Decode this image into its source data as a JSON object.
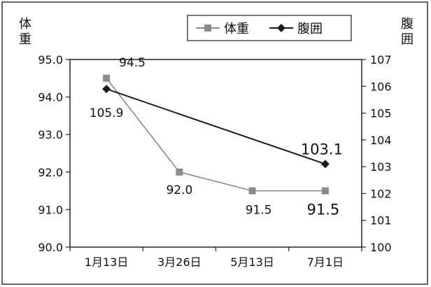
{
  "chart_data": {
    "type": "line",
    "categories": [
      "1月13日",
      "3月26日",
      "5月13日",
      "7月1日"
    ],
    "series": [
      {
        "name": "体重",
        "axis": "left",
        "values": [
          94.5,
          92.0,
          91.5,
          91.5
        ],
        "color": "#8a8a8a",
        "marker": "square"
      },
      {
        "name": "腹囲",
        "axis": "right",
        "values": [
          105.9,
          null,
          null,
          103.1
        ],
        "color": "#1a1a1a",
        "marker": "diamond"
      }
    ],
    "y_left": {
      "label": "体重",
      "lim": [
        90.0,
        95.0
      ],
      "ticks": [
        "90.0",
        "91.0",
        "92.0",
        "93.0",
        "94.0",
        "95.0"
      ]
    },
    "y_right": {
      "label": "腹囲",
      "lim": [
        100,
        107
      ],
      "ticks": [
        "100",
        "101",
        "102",
        "103",
        "104",
        "105",
        "106",
        "107"
      ]
    },
    "data_labels": [
      {
        "series": 0,
        "index": 0,
        "text": "94.5"
      },
      {
        "series": 0,
        "index": 1,
        "text": "92.0"
      },
      {
        "series": 0,
        "index": 2,
        "text": "91.5"
      },
      {
        "series": 0,
        "index": 3,
        "text": "91.5"
      },
      {
        "series": 1,
        "index": 0,
        "text": "105.9"
      },
      {
        "series": 1,
        "index": 3,
        "text": "103.1"
      }
    ],
    "legend": {
      "position": "top-right",
      "entries": [
        "体重",
        "腹囲"
      ]
    },
    "grid": false
  }
}
